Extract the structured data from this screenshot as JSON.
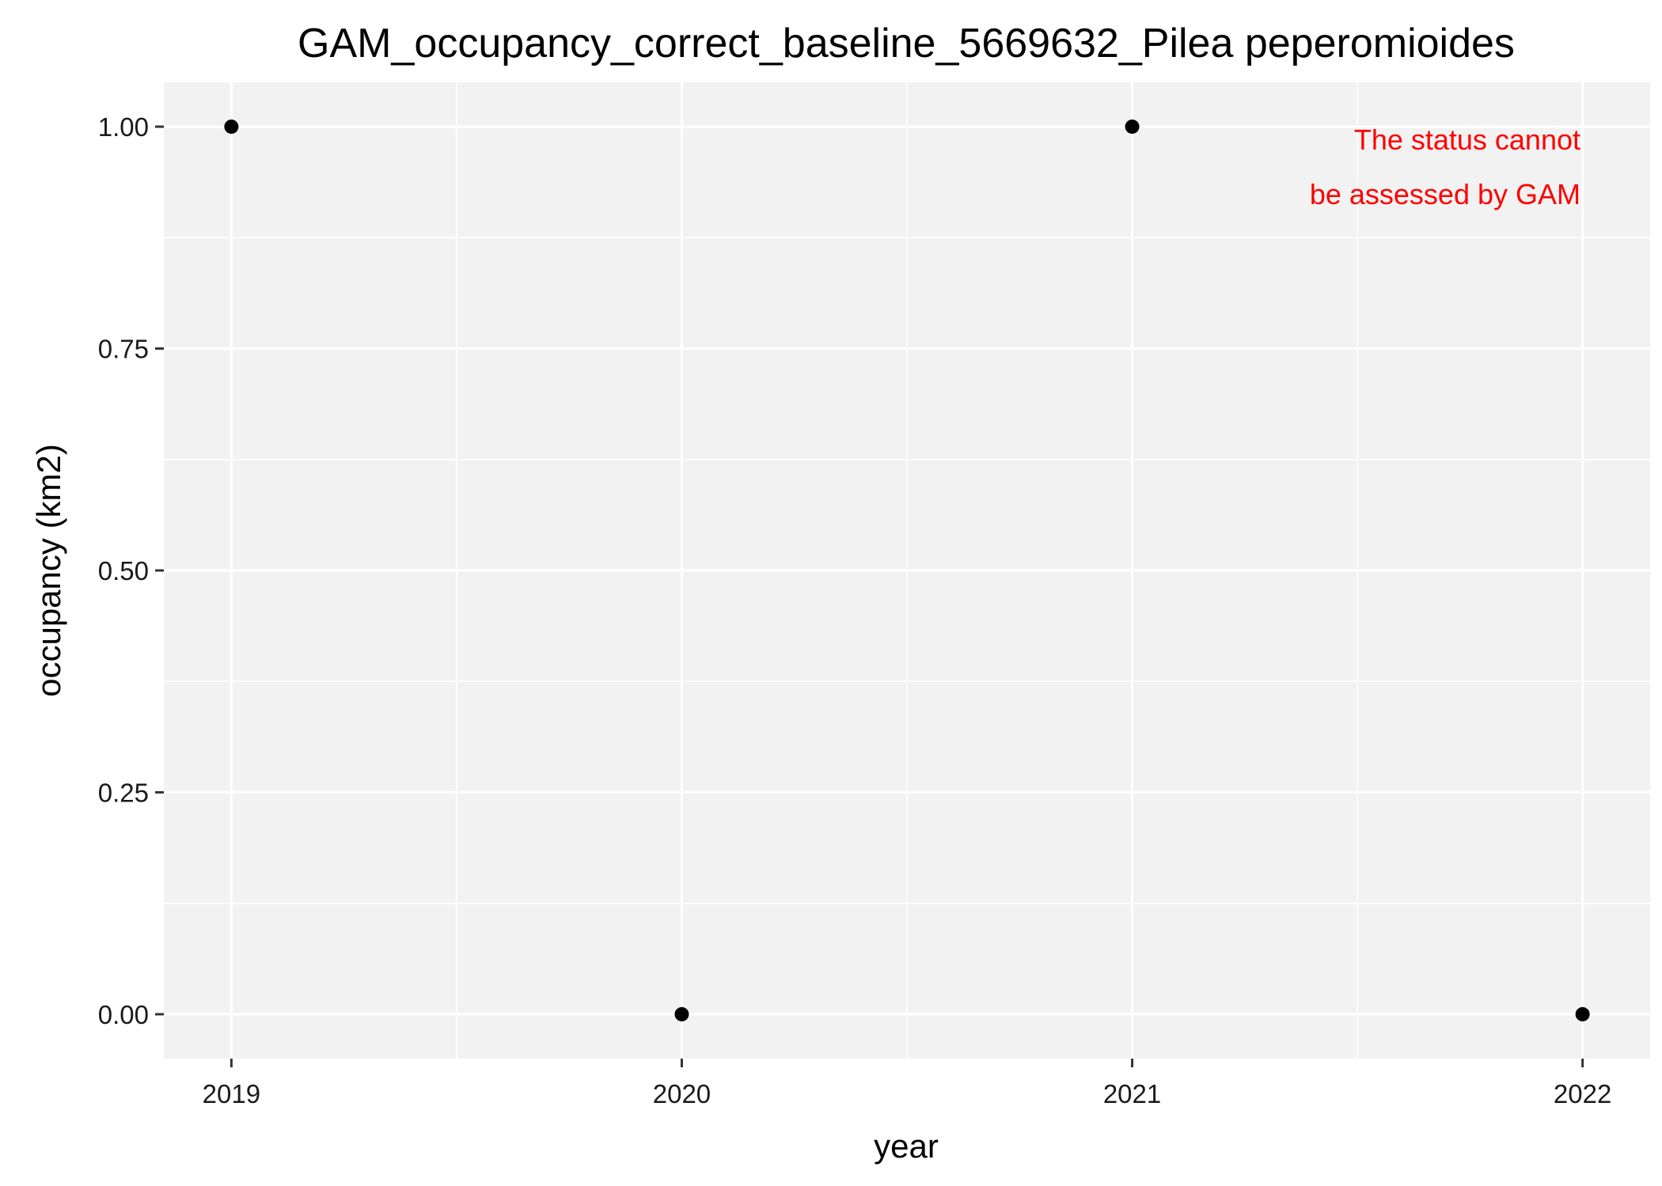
{
  "chart_data": {
    "type": "scatter",
    "title": "GAM_occupancy_correct_baseline_5669632_Pilea peperomioides",
    "xlabel": "year",
    "ylabel": "occupancy (km2)",
    "x": [
      2019,
      2020,
      2021,
      2022
    ],
    "y": [
      1,
      0,
      1,
      0
    ],
    "xticks": [
      "2019",
      "2020",
      "2021",
      "2022"
    ],
    "yticks": [
      "0.00",
      "0.25",
      "0.50",
      "0.75",
      "1.00"
    ],
    "xlim": [
      2018.85,
      2022.15
    ],
    "ylim": [
      -0.05,
      1.05
    ],
    "grid": true,
    "annotation": [
      "The status cannot",
      "be assessed by GAM"
    ],
    "colors": {
      "panel": "#f2f2f2",
      "grid": "#ffffff",
      "point": "#000000",
      "annotation": "#ff0000",
      "text": "#000000"
    }
  }
}
